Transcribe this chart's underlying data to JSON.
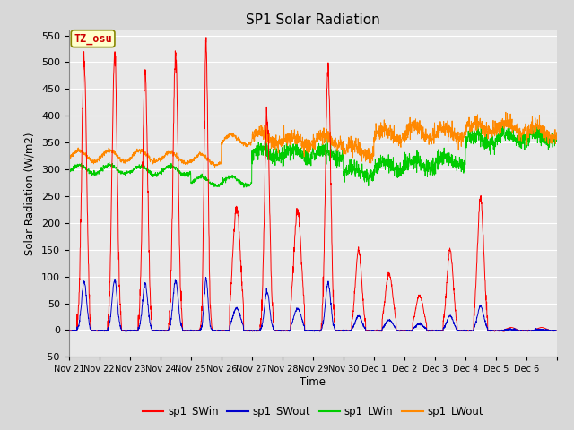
{
  "title": "SP1 Solar Radiation",
  "ylabel": "Solar Radiation (W/m2)",
  "xlabel": "Time",
  "ylim": [
    -50,
    560
  ],
  "yticks": [
    -50,
    0,
    50,
    100,
    150,
    200,
    250,
    300,
    350,
    400,
    450,
    500,
    550
  ],
  "fig_bg_color": "#d8d8d8",
  "plot_bg_color": "#e8e8e8",
  "grid_color": "white",
  "colors": {
    "SWin": "#ff0000",
    "SWout": "#0000cc",
    "LWin": "#00cc00",
    "LWout": "#ff8800"
  },
  "legend_labels": [
    "sp1_SWin",
    "sp1_SWout",
    "sp1_LWin",
    "sp1_LWout"
  ],
  "tz_label": "TZ_osu",
  "x_tick_labels": [
    "Nov 21",
    "Nov 22",
    "Nov 23",
    "Nov 24",
    "Nov 25",
    "Nov 26",
    "Nov 27",
    "Nov 28",
    "Nov 29",
    "Nov 30",
    "Dec 1",
    "Dec 2",
    "Dec 3",
    "Dec 4",
    "Dec 5",
    "Dec 6"
  ],
  "num_days": 16,
  "pts_per_day": 144,
  "seed": 42
}
